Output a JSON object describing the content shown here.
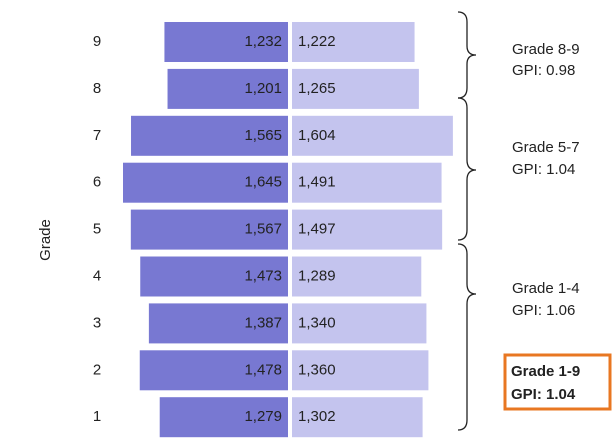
{
  "chart_data": {
    "type": "bar",
    "axis_label": "Grade",
    "categories": [
      "9",
      "8",
      "7",
      "6",
      "5",
      "4",
      "3",
      "2",
      "1"
    ],
    "series": [
      {
        "color": "#7878d2",
        "values": [
          1232,
          1201,
          1565,
          1645,
          1567,
          1473,
          1387,
          1478,
          1279
        ],
        "value_labels": [
          "1,232",
          "1,201",
          "1,565",
          "1,645",
          "1,567",
          "1,473",
          "1,387",
          "1,478",
          "1,279"
        ]
      },
      {
        "color": "#c4c4ee",
        "values": [
          1222,
          1265,
          1604,
          1491,
          1497,
          1289,
          1340,
          1360,
          1302
        ],
        "value_labels": [
          "1,222",
          "1,265",
          "1,604",
          "1,491",
          "1,497",
          "1,289",
          "1,340",
          "1,360",
          "1,302"
        ]
      }
    ],
    "annotations": [
      {
        "group": "Grade 8-9",
        "gpi": "GPI:  0.98"
      },
      {
        "group": "Grade 5-7",
        "gpi": "GPI:  1.04"
      },
      {
        "group": "Grade 1-4",
        "gpi": "GPI:  1.06"
      }
    ],
    "highlight": {
      "group": "Grade 1-9",
      "gpi": "GPI:  1.04",
      "color": "#e87722"
    }
  }
}
